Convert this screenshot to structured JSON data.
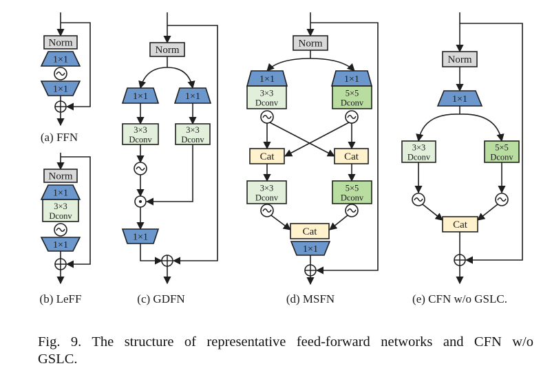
{
  "colors": {
    "norm_fill": "#d9d9d9",
    "conv1x1_fill": "#6b97cc",
    "dconv3_fill": "#e2efda",
    "dconv5_fill": "#b9dca1",
    "cat_fill": "#fff2cc",
    "stroke": "#1e1e1e"
  },
  "panels": {
    "a": {
      "caption": "(a) FFN",
      "norm": "Norm",
      "conv_in": "1×1",
      "conv_out": "1×1"
    },
    "b": {
      "caption": "(b) LeFF",
      "norm": "Norm",
      "conv_in": "1×1",
      "dconv_k": "3×3",
      "dconv": "Dconv",
      "conv_out": "1×1"
    },
    "c": {
      "caption": "(c) GDFN",
      "norm": "Norm",
      "conv_left": "1×1",
      "conv_right": "1×1",
      "dconv_left_k": "3×3",
      "dconv_left": "Dconv",
      "dconv_right_k": "3×3",
      "dconv_right": "Dconv",
      "conv_out": "1×1"
    },
    "d": {
      "caption": "(d) MSFN",
      "norm": "Norm",
      "conv_left": "1×1",
      "conv_right": "1×1",
      "dconv1_left_k": "3×3",
      "dconv1_left": "Dconv",
      "dconv1_right_k": "5×5",
      "dconv1_right": "Dconv",
      "cat_left": "Cat",
      "cat_right": "Cat",
      "dconv2_left_k": "3×3",
      "dconv2_left": "Dconv",
      "dconv2_right_k": "5×5",
      "dconv2_right": "Dconv",
      "cat_out": "Cat",
      "conv_out": "1×1"
    },
    "e": {
      "caption": "(e) CFN w/o GSLC.",
      "norm": "Norm",
      "conv_in": "1×1",
      "dconv_left_k": "3×3",
      "dconv_left": "Dconv",
      "dconv_right_k": "5×5",
      "dconv_right": "Dconv",
      "cat": "Cat"
    }
  },
  "figure_caption": {
    "line1": "Fig. 9.  The structure of representative feed-forward networks and CFN w/o",
    "line2": "GSLC."
  }
}
